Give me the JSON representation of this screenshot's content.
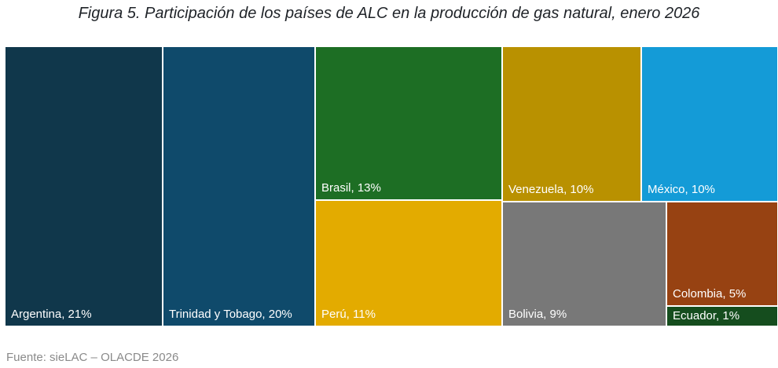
{
  "title": "Figura 5. Participación de los países de ALC en la producción de gas natural, enero 2026",
  "source": "Fuente: sieLAC – OLACDE 2026",
  "chart_data": {
    "type": "treemap",
    "unit": "%",
    "items": [
      {
        "label": "Argentina, 21%",
        "name": "Argentina",
        "value": 21,
        "color": "#10374b",
        "text_color": "#ffffff"
      },
      {
        "label": "Trinidad y Tobago, 20%",
        "name": "Trinidad y Tobago",
        "value": 20,
        "color": "#0f4a6b",
        "text_color": "#ffffff"
      },
      {
        "label": "Brasil, 13%",
        "name": "Brasil",
        "value": 13,
        "color": "#1d6e24",
        "text_color": "#ffffff"
      },
      {
        "label": "Perú, 11%",
        "name": "Perú",
        "value": 11,
        "color": "#e3ab00",
        "text_color": "#ffffff"
      },
      {
        "label": "Venezuela, 10%",
        "name": "Venezuela",
        "value": 10,
        "color": "#b99100",
        "text_color": "#ffffff"
      },
      {
        "label": "México, 10%",
        "name": "México",
        "value": 10,
        "color": "#149bd7",
        "text_color": "#ffffff"
      },
      {
        "label": "Bolivia, 9%",
        "name": "Bolivia",
        "value": 9,
        "color": "#787878",
        "text_color": "#ffffff"
      },
      {
        "label": "Colombia, 5%",
        "name": "Colombia",
        "value": 5,
        "color": "#974212",
        "text_color": "#ffffff"
      },
      {
        "label": "Ecuador, 1%",
        "name": "Ecuador",
        "value": 1,
        "color": "#154d1e",
        "text_color": "#ffffff"
      }
    ]
  }
}
